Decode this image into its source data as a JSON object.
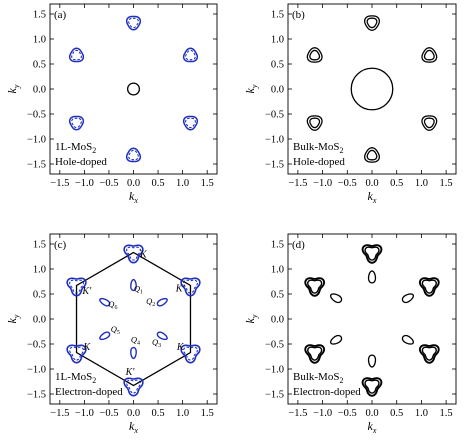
{
  "figure": {
    "colors": {
      "blue": "#1f2fbf",
      "black": "#000000"
    },
    "ticks": [
      -1.5,
      -1.0,
      -0.5,
      0.0,
      0.5,
      1.0,
      1.5
    ],
    "tick_labels": [
      "−1.5",
      "−1.0",
      "−0.5",
      "0.0",
      "0.5",
      "1.0",
      "1.5"
    ],
    "xlabel": "k",
    "xlabel_sub": "x",
    "ylabel": "k",
    "ylabel_sub": "y"
  },
  "chart_data": [
    {
      "type": "scatter",
      "panel_label": "(a)",
      "title_line1": "1L-MoS",
      "title_sub": "2",
      "title_line2": "Hole-doped",
      "xlim": [
        -1.7,
        1.7
      ],
      "ylim": [
        -1.7,
        1.7
      ],
      "central_pocket": {
        "x": 0.0,
        "y": 0.0,
        "radius": 0.12,
        "style": "solid-black"
      },
      "pockets": [
        {
          "x": 0.0,
          "y": 1.33
        },
        {
          "x": 1.16,
          "y": 0.67
        },
        {
          "x": 1.16,
          "y": -0.67
        },
        {
          "x": 0.0,
          "y": -1.33
        },
        {
          "x": -1.16,
          "y": -0.67
        },
        {
          "x": -1.16,
          "y": 0.67
        }
      ],
      "pocket_style": "blue solid outer + blue dashed inner"
    },
    {
      "type": "scatter",
      "panel_label": "(b)",
      "title_line1": "Bulk-MoS",
      "title_sub": "2",
      "title_line2": "Hole-doped",
      "xlim": [
        -1.7,
        1.7
      ],
      "ylim": [
        -1.7,
        1.7
      ],
      "central_pocket": {
        "x": 0.0,
        "y": 0.0,
        "radius": 0.42,
        "style": "solid-black"
      },
      "pockets": [
        {
          "x": 0.0,
          "y": 1.33
        },
        {
          "x": 1.16,
          "y": 0.67
        },
        {
          "x": 1.16,
          "y": -0.67
        },
        {
          "x": 0.0,
          "y": -1.33
        },
        {
          "x": -1.16,
          "y": -0.67
        },
        {
          "x": -1.16,
          "y": 0.67
        }
      ],
      "pocket_style": "black double contour"
    },
    {
      "type": "scatter",
      "panel_label": "(c)",
      "title_line1": "1L-MoS",
      "title_sub": "2",
      "title_line2": "Electron-doped",
      "xlim": [
        -1.7,
        1.7
      ],
      "ylim": [
        -1.7,
        1.7
      ],
      "hexagon_vertices": [
        {
          "x": 0.0,
          "y": 1.33
        },
        {
          "x": 1.16,
          "y": 0.67
        },
        {
          "x": 1.16,
          "y": -0.67
        },
        {
          "x": 0.0,
          "y": -1.33
        },
        {
          "x": -1.16,
          "y": -0.67
        },
        {
          "x": -1.16,
          "y": 0.67
        }
      ],
      "k_labels": [
        {
          "text": "K",
          "x": 0.2,
          "y": 1.23
        },
        {
          "text": "K'",
          "x": -0.95,
          "y": 0.5
        },
        {
          "text": "K",
          "x": -0.95,
          "y": -0.62
        },
        {
          "text": "K'",
          "x": -0.07,
          "y": -1.12
        },
        {
          "text": "K",
          "x": 0.95,
          "y": -0.62
        },
        {
          "text": "K'",
          "x": 0.95,
          "y": 0.55
        }
      ],
      "q_pockets": [
        {
          "label": "Q",
          "sub": "1",
          "x": 0.0,
          "y": 0.66,
          "lx": 0.1,
          "ly": 0.55
        },
        {
          "label": "Q",
          "sub": "2",
          "x": 0.57,
          "y": 0.33,
          "lx": 0.35,
          "ly": 0.3
        },
        {
          "label": "Q",
          "sub": "3",
          "x": 0.57,
          "y": -0.33,
          "lx": 0.47,
          "ly": -0.52
        },
        {
          "label": "Q",
          "sub": "4",
          "x": 0.0,
          "y": -0.66,
          "lx": 0.04,
          "ly": -0.47
        },
        {
          "label": "Q",
          "sub": "5",
          "x": -0.57,
          "y": -0.33,
          "lx": -0.37,
          "ly": -0.26
        },
        {
          "label": "Q",
          "sub": "6",
          "x": -0.57,
          "y": 0.33,
          "lx": -0.42,
          "ly": 0.24
        }
      ]
    },
    {
      "type": "scatter",
      "panel_label": "(d)",
      "title_line1": "Bulk-MoS",
      "title_sub": "2",
      "title_line2": "Electron-doped",
      "xlim": [
        -1.7,
        1.7
      ],
      "ylim": [
        -1.7,
        1.7
      ],
      "k_pockets": [
        {
          "x": 0.0,
          "y": 1.33
        },
        {
          "x": 1.16,
          "y": 0.67
        },
        {
          "x": 1.16,
          "y": -0.67
        },
        {
          "x": 0.0,
          "y": -1.33
        },
        {
          "x": -1.16,
          "y": -0.67
        },
        {
          "x": -1.16,
          "y": 0.67
        }
      ],
      "q_pockets": [
        {
          "x": 0.0,
          "y": 0.82
        },
        {
          "x": 0.71,
          "y": 0.41
        },
        {
          "x": 0.71,
          "y": -0.41
        },
        {
          "x": 0.0,
          "y": -0.82
        },
        {
          "x": -0.71,
          "y": -0.41
        },
        {
          "x": -0.71,
          "y": 0.41
        }
      ]
    }
  ]
}
